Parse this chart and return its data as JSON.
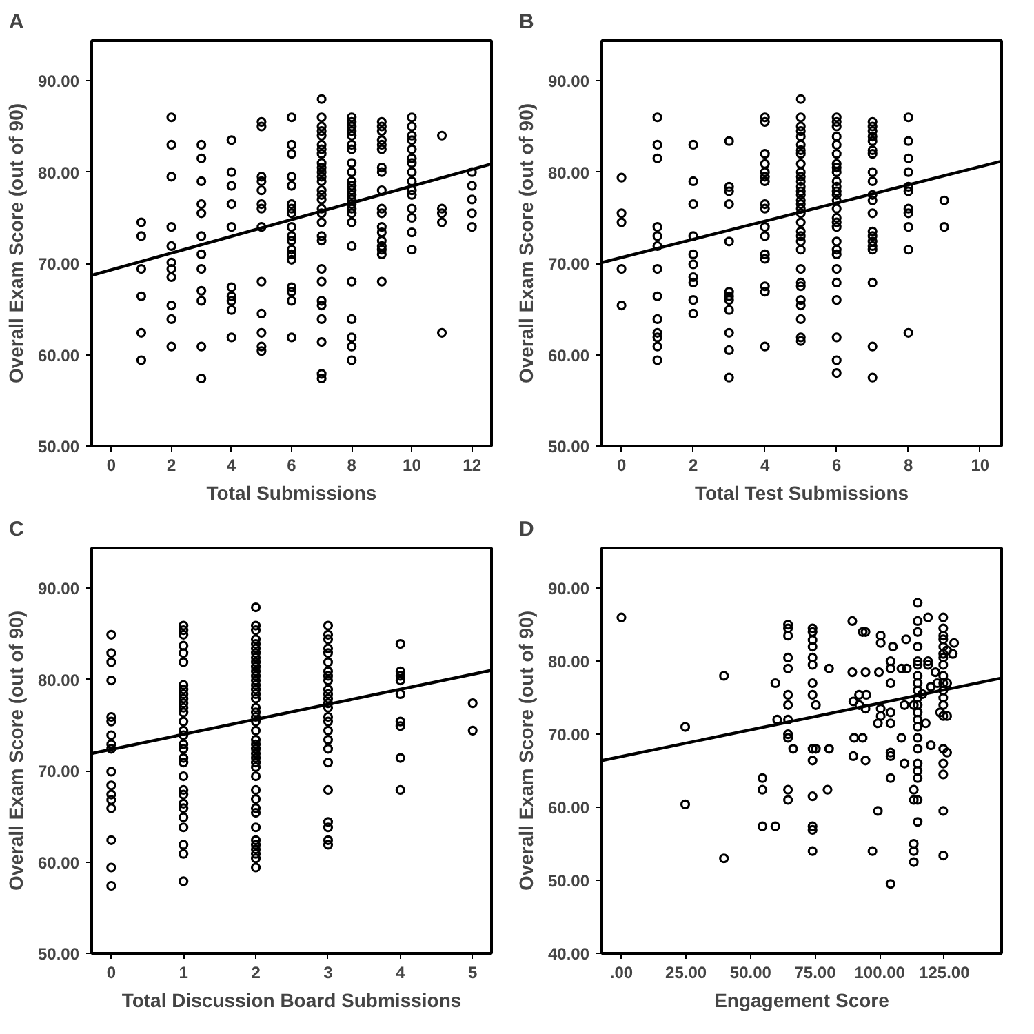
{
  "chart_data": [
    {
      "type": "scatter",
      "title": "A",
      "xlabel": "Total Submissions",
      "ylabel": "Overall Exam Score (out of 90)",
      "grid": false,
      "xlim": [
        -0.65,
        12.65
      ],
      "ylim": [
        50,
        94.4
      ],
      "xticks": [
        0,
        2,
        4,
        6,
        8,
        10,
        12
      ],
      "yticks": [
        {
          "value": 50,
          "label": "50.00"
        },
        {
          "value": 60,
          "label": "60.00"
        },
        {
          "value": 70,
          "label": "70.00"
        },
        {
          "value": 80,
          "label": "80.00"
        },
        {
          "value": 90,
          "label": "90.00"
        }
      ],
      "series": [
        {
          "marker": "circle",
          "color": "#000000",
          "x": [
            1,
            1,
            1,
            1,
            1,
            1,
            2,
            2,
            2,
            2,
            2,
            2,
            2,
            2,
            2,
            2,
            2,
            3,
            3,
            3,
            3,
            3,
            3,
            3,
            3,
            3,
            3,
            3,
            3,
            4,
            4,
            4,
            4,
            4,
            4,
            4,
            4,
            4,
            4,
            5,
            5,
            5,
            5,
            5,
            5,
            5,
            5,
            5,
            5,
            5,
            5,
            5,
            6,
            6,
            6,
            6,
            6,
            6,
            6,
            6,
            6,
            6,
            6,
            6,
            6,
            6,
            6,
            6,
            6,
            6,
            7,
            7,
            7,
            7,
            7,
            7,
            7,
            7,
            7,
            7,
            7,
            7,
            7,
            7,
            7,
            7,
            7,
            7,
            7,
            7,
            7,
            7,
            7,
            7,
            7,
            7,
            7,
            7,
            7,
            8,
            8,
            8,
            8,
            8,
            8,
            8,
            8,
            8,
            8,
            8,
            8,
            8,
            8,
            8,
            8,
            8,
            8,
            8,
            8,
            8,
            8,
            8,
            8,
            9,
            9,
            9,
            9,
            9,
            9,
            9,
            9,
            9,
            9,
            9,
            9,
            9,
            9,
            9,
            9,
            9,
            9,
            10,
            10,
            10,
            10,
            10,
            10,
            10,
            10,
            10,
            10,
            10,
            10,
            10,
            10,
            10,
            11,
            11,
            11,
            11,
            11,
            12,
            12,
            12,
            12,
            12
          ],
          "values": [
            74.5,
            73,
            69.4,
            66.4,
            62.4,
            59.4,
            86,
            83,
            79.5,
            74,
            71.9,
            70.1,
            69.4,
            68.5,
            65.4,
            63.9,
            60.9,
            83,
            81.5,
            79,
            76.5,
            75.5,
            73,
            71,
            69.4,
            67,
            65.9,
            60.9,
            57.4,
            83.5,
            80,
            78.5,
            76.5,
            74,
            67.4,
            66.4,
            65.9,
            64.9,
            61.9,
            85.5,
            85,
            79.5,
            79,
            78,
            76.5,
            76,
            74,
            68,
            64.5,
            62.4,
            60.9,
            60.4,
            86,
            83,
            82,
            79.5,
            78.5,
            76.5,
            76,
            75.5,
            74,
            73,
            72.5,
            71.5,
            71,
            70.4,
            67.4,
            66.9,
            65.9,
            61.9,
            88,
            86,
            85,
            84.5,
            84,
            83,
            82.5,
            82,
            81,
            80.5,
            80,
            79.5,
            79,
            78,
            77.5,
            77,
            76,
            75.5,
            74.5,
            73,
            72.5,
            69.4,
            68,
            65.9,
            65.4,
            63.9,
            61.4,
            57.9,
            57.4,
            86,
            85.5,
            85,
            84.5,
            84,
            83,
            82.5,
            81,
            80,
            79,
            78.5,
            78,
            77.5,
            77,
            76.5,
            76,
            75.5,
            74.5,
            71.9,
            68,
            63.9,
            61.9,
            60.9,
            59.4,
            85.5,
            85,
            84.5,
            83.5,
            83,
            82.5,
            80.5,
            80,
            78,
            76,
            75.5,
            74,
            73.4,
            72.5,
            71.9,
            71.5,
            71,
            68,
            86,
            85,
            84,
            83.5,
            82.5,
            81.5,
            81,
            80,
            79,
            78,
            77.5,
            76,
            75,
            73.4,
            71.5,
            84,
            76,
            75.5,
            74.5,
            62.4,
            80,
            78.5,
            77,
            75.5,
            74
          ]
        },
        {
          "type": "line",
          "color": "#000000",
          "x": [
            -0.65,
            12.65
          ],
          "values": [
            68.7,
            80.9
          ]
        }
      ]
    },
    {
      "type": "scatter",
      "title": "B",
      "xlabel": "Total Test Submissions",
      "ylabel": "Overall Exam Score (out of 90)",
      "grid": false,
      "xlim": [
        -0.55,
        10.6
      ],
      "ylim": [
        50,
        94.4
      ],
      "xticks": [
        0,
        2,
        4,
        6,
        8,
        10
      ],
      "yticks": [
        {
          "value": 50,
          "label": "50.00"
        },
        {
          "value": 60,
          "label": "60.00"
        },
        {
          "value": 70,
          "label": "70.00"
        },
        {
          "value": 80,
          "label": "80.00"
        },
        {
          "value": 90,
          "label": "90.00"
        }
      ],
      "series": [
        {
          "marker": "circle",
          "color": "#000000",
          "x": [
            0,
            0,
            0,
            0,
            0,
            1,
            1,
            1,
            1,
            1,
            1,
            1,
            1,
            1,
            1,
            1,
            1,
            1,
            2,
            2,
            2,
            2,
            2,
            2,
            2,
            2,
            2,
            2,
            3,
            3,
            3,
            3,
            3,
            3,
            3,
            3,
            3,
            3,
            3,
            3,
            4,
            4,
            4,
            4,
            4,
            4,
            4,
            4,
            4,
            4,
            4,
            4,
            4,
            4,
            4,
            4,
            5,
            5,
            5,
            5,
            5,
            5,
            5,
            5,
            5,
            5,
            5,
            5,
            5,
            5,
            5,
            5,
            5,
            5,
            5,
            5,
            5,
            5,
            5,
            5,
            5,
            5,
            5,
            5,
            5,
            5,
            5,
            5,
            6,
            6,
            6,
            6,
            6,
            6,
            6,
            6,
            6,
            6,
            6,
            6,
            6,
            6,
            6,
            6,
            6,
            6,
            6,
            6,
            6,
            6,
            6,
            6,
            6,
            6,
            6,
            7,
            7,
            7,
            7,
            7,
            7,
            7,
            7,
            7,
            7,
            7,
            7,
            7,
            7,
            7,
            7,
            7,
            7,
            7,
            7,
            8,
            8,
            8,
            8,
            8,
            8,
            8,
            8,
            8,
            8,
            8,
            9,
            9
          ],
          "values": [
            79.4,
            75.5,
            74.5,
            69.4,
            65.4,
            86,
            83,
            81.5,
            74,
            73,
            71.9,
            69.4,
            66.4,
            63.9,
            62.4,
            61.9,
            60.9,
            59.4,
            83,
            79,
            76.5,
            73,
            71,
            69.9,
            68.5,
            67.9,
            66,
            64.5,
            83.4,
            78.4,
            77.9,
            76.5,
            72.4,
            66.9,
            66.4,
            66,
            64.9,
            62.4,
            60.5,
            57.5,
            86,
            85.5,
            82,
            80.9,
            80,
            79.5,
            79,
            76.5,
            76,
            74,
            73,
            71,
            70.5,
            67.5,
            66.9,
            60.9,
            88,
            86,
            85,
            84.5,
            83.9,
            83,
            82.4,
            82,
            80.9,
            80,
            79.5,
            79,
            78.4,
            77.9,
            77.5,
            76.9,
            76.5,
            76,
            75.5,
            74.5,
            73.5,
            73,
            72.4,
            71.5,
            69.4,
            67.9,
            67.5,
            66,
            65.4,
            63.9,
            61.9,
            61.5,
            86,
            85.5,
            85,
            83.9,
            83,
            82,
            80.9,
            80.5,
            80,
            79,
            78.4,
            77.9,
            77.5,
            76.9,
            76,
            75,
            74.5,
            74,
            72.4,
            71.5,
            71,
            69.4,
            67.9,
            66,
            61.9,
            59.4,
            58,
            85.5,
            85,
            84.5,
            83.9,
            83.4,
            82.4,
            82,
            80,
            79,
            77.5,
            76.9,
            75.5,
            73.5,
            73,
            72.4,
            71.9,
            71.5,
            67.9,
            60.9,
            57.5,
            86,
            83.4,
            81.5,
            80,
            78.4,
            77.9,
            76,
            75.5,
            74,
            71.5,
            62.4,
            76.9,
            74
          ]
        },
        {
          "type": "line",
          "color": "#000000",
          "x": [
            -0.55,
            10.6
          ],
          "values": [
            70.1,
            81.2
          ]
        }
      ]
    },
    {
      "type": "scatter",
      "title": "C",
      "xlabel": "Total Discussion Board Submissions",
      "ylabel": "Overall Exam Score (out of 90)",
      "grid": false,
      "xlim": [
        -0.27,
        5.26
      ],
      "ylim": [
        50,
        94.4
      ],
      "xticks": [
        0,
        1,
        2,
        3,
        4,
        5
      ],
      "yticks": [
        {
          "value": 50,
          "label": "50.00"
        },
        {
          "value": 60,
          "label": "60.00"
        },
        {
          "value": 70,
          "label": "70.00"
        },
        {
          "value": 80,
          "label": "80.00"
        },
        {
          "value": 90,
          "label": "90.00"
        }
      ],
      "series": [
        {
          "marker": "circle",
          "color": "#000000",
          "x": [
            0,
            0,
            0,
            0,
            0,
            0,
            0,
            0,
            0,
            0,
            0,
            0,
            0,
            0,
            0,
            0,
            0,
            1,
            1,
            1,
            1,
            1,
            1,
            1,
            1,
            1,
            1,
            1,
            1,
            1,
            1,
            1,
            1,
            1,
            1,
            1,
            1,
            1,
            1,
            1,
            1,
            1,
            1,
            1,
            1,
            1,
            1,
            2,
            2,
            2,
            2,
            2,
            2,
            2,
            2,
            2,
            2,
            2,
            2,
            2,
            2,
            2,
            2,
            2,
            2,
            2,
            2,
            2,
            2,
            2,
            2,
            2,
            2,
            2,
            2,
            2,
            2,
            2,
            2,
            2,
            2,
            2,
            2,
            2,
            2,
            2,
            2,
            2,
            3,
            3,
            3,
            3,
            3,
            3,
            3,
            3,
            3,
            3,
            3,
            3,
            3,
            3,
            3,
            3,
            3,
            3,
            3,
            3,
            3,
            3,
            3,
            3,
            3,
            4,
            4,
            4,
            4,
            4,
            4,
            4,
            4,
            4,
            5,
            5
          ],
          "values": [
            84.9,
            82.9,
            81.9,
            79.9,
            75.9,
            75.4,
            73.9,
            72.9,
            72.4,
            69.9,
            68.4,
            67.4,
            66.8,
            65.9,
            62.4,
            59.4,
            57.4,
            85.9,
            85.4,
            84.9,
            83.7,
            82.9,
            81.9,
            79.4,
            78.9,
            78.4,
            77.9,
            77.4,
            76.9,
            76.4,
            75.4,
            74.4,
            73.9,
            72.9,
            72.4,
            71.4,
            70.9,
            69.4,
            67.9,
            67.4,
            66.4,
            65.9,
            64.9,
            63.8,
            61.9,
            60.9,
            57.9,
            87.9,
            85.9,
            85.4,
            84.4,
            83.9,
            83.4,
            82.9,
            82.4,
            81.9,
            81.4,
            80.9,
            80.4,
            79.9,
            79.4,
            78.9,
            78.4,
            77.9,
            76.9,
            76.4,
            75.9,
            75.4,
            74.4,
            73.4,
            72.9,
            72.4,
            71.9,
            71.4,
            70.9,
            70.4,
            69.4,
            67.9,
            66.9,
            65.9,
            65.4,
            63.8,
            62.4,
            61.9,
            61.4,
            60.9,
            60.4,
            59.4,
            85.9,
            84.9,
            84.4,
            83.4,
            82.9,
            81.9,
            80.9,
            80.4,
            79.9,
            78.9,
            78.4,
            77.9,
            77.4,
            76.9,
            75.9,
            75.4,
            74.4,
            73.4,
            72.4,
            70.9,
            67.9,
            64.4,
            63.8,
            62.4,
            61.9,
            83.9,
            80.9,
            80.4,
            79.9,
            78.4,
            75.4,
            74.9,
            71.4,
            67.9,
            77.4,
            74.4
          ]
        },
        {
          "type": "line",
          "color": "#000000",
          "x": [
            -0.27,
            5.26
          ],
          "values": [
            71.9,
            81.0
          ]
        }
      ]
    },
    {
      "type": "scatter",
      "title": "D",
      "xlabel": "Engagement Score",
      "ylabel": "Overall Exam Score (out of 90)",
      "grid": false,
      "xlim": [
        -7.6,
        147.2
      ],
      "ylim": [
        40,
        95.5
      ],
      "xticks": [
        {
          "value": 0,
          "label": ".00"
        },
        {
          "value": 25,
          "label": "25.00"
        },
        {
          "value": 50,
          "label": "50.00"
        },
        {
          "value": 75,
          "label": "75.00"
        },
        {
          "value": 100,
          "label": "100.00"
        },
        {
          "value": 125,
          "label": "125.00"
        }
      ],
      "yticks": [
        {
          "value": 40,
          "label": "40.00"
        },
        {
          "value": 50,
          "label": "50.00"
        },
        {
          "value": 60,
          "label": "60.00"
        },
        {
          "value": 70,
          "label": "70.00"
        },
        {
          "value": 80,
          "label": "80.00"
        },
        {
          "value": 90,
          "label": "90.00"
        }
      ],
      "series": [
        {
          "marker": "circle",
          "color": "#000000",
          "x": [
            0,
            24.7,
            24.7,
            39.7,
            39.7,
            54.6,
            54.6,
            54.6,
            59.6,
            59.6,
            60.3,
            64.5,
            64.5,
            64.5,
            64.5,
            64.5,
            64.5,
            64.5,
            64.5,
            64.5,
            64.5,
            64.5,
            64.5,
            66.5,
            74,
            74,
            74,
            74,
            74,
            74,
            74,
            74,
            74,
            74,
            74,
            74,
            74,
            74,
            75.3,
            75.3,
            80.4,
            80.4,
            79.8,
            89.4,
            89.4,
            89.8,
            90.1,
            89.8,
            92.1,
            93.4,
            94.5,
            92,
            94.8,
            93.4,
            94.5,
            94.5,
            94.5,
            97.2,
            99.7,
            99.3,
            99.3,
            100.4,
            100.4,
            100.4,
            100.4,
            104.2,
            104.2,
            104.2,
            104.2,
            104.2,
            104.2,
            104.2,
            104.2,
            104.2,
            105.1,
            108.4,
            108.4,
            110.2,
            110.5,
            109.6,
            109.6,
            113.2,
            113.2,
            113.2,
            113.2,
            113.2,
            113.2,
            114.7,
            114.7,
            114.7,
            114.7,
            114.7,
            114.7,
            114.7,
            114.7,
            114.7,
            114.7,
            114.7,
            114.7,
            114.7,
            114.7,
            114.7,
            114.7,
            114.7,
            114.7,
            114.7,
            114.7,
            114.7,
            116.5,
            117.8,
            118.7,
            118.7,
            118.7,
            119.8,
            119.8,
            121.6,
            122.3,
            123.4,
            124.6,
            124.6,
            124.6,
            124.6,
            124.6,
            124.6,
            124.6,
            124.6,
            124.6,
            124.6,
            124.6,
            124.6,
            124.6,
            124.6,
            124.6,
            124.6,
            124.6,
            124.6,
            124.6,
            126.1,
            126.1,
            126.1,
            126.1,
            128.3,
            128.8
          ],
          "values": [
            86,
            71,
            60.4,
            78,
            53,
            64,
            62.4,
            57.4,
            77,
            57.4,
            72,
            85,
            84.5,
            83.5,
            80.5,
            79,
            75.4,
            74,
            72,
            70,
            69.5,
            62.4,
            61,
            68,
            84.5,
            84,
            82.9,
            82,
            80.5,
            79.5,
            77,
            75.4,
            68,
            66.4,
            61.5,
            57.4,
            56.9,
            54,
            74,
            68,
            79,
            68,
            62.4,
            85.5,
            78.5,
            74.5,
            69.5,
            67,
            74,
            84,
            84,
            75.4,
            75.4,
            69.5,
            78.5,
            73.5,
            66.4,
            54,
            78.5,
            71.5,
            59.5,
            83.5,
            82.5,
            73.5,
            72.5,
            80,
            79,
            77,
            73,
            71.5,
            67.5,
            67,
            64,
            49.5,
            82,
            79,
            69.5,
            83,
            79,
            74,
            66,
            74,
            62.4,
            61,
            55,
            54,
            52.5,
            88,
            85.5,
            84,
            82,
            80,
            79.5,
            78,
            77,
            76,
            75,
            74,
            73,
            72,
            71,
            69.5,
            68,
            66,
            65,
            64,
            61,
            58,
            75.5,
            71.5,
            86,
            80,
            79.5,
            68.5,
            76.5,
            78.5,
            77,
            73,
            86,
            84.5,
            83.5,
            83,
            82,
            81,
            80.5,
            79.5,
            78,
            77,
            76,
            75,
            74,
            72.5,
            68,
            66,
            64.5,
            59.5,
            53.4,
            81.5,
            77,
            72.5,
            67.5,
            81,
            82.5
          ]
        },
        {
          "type": "line",
          "color": "#000000",
          "x": [
            -7.6,
            147.2
          ],
          "values": [
            66.4,
            77.7
          ]
        }
      ]
    }
  ]
}
